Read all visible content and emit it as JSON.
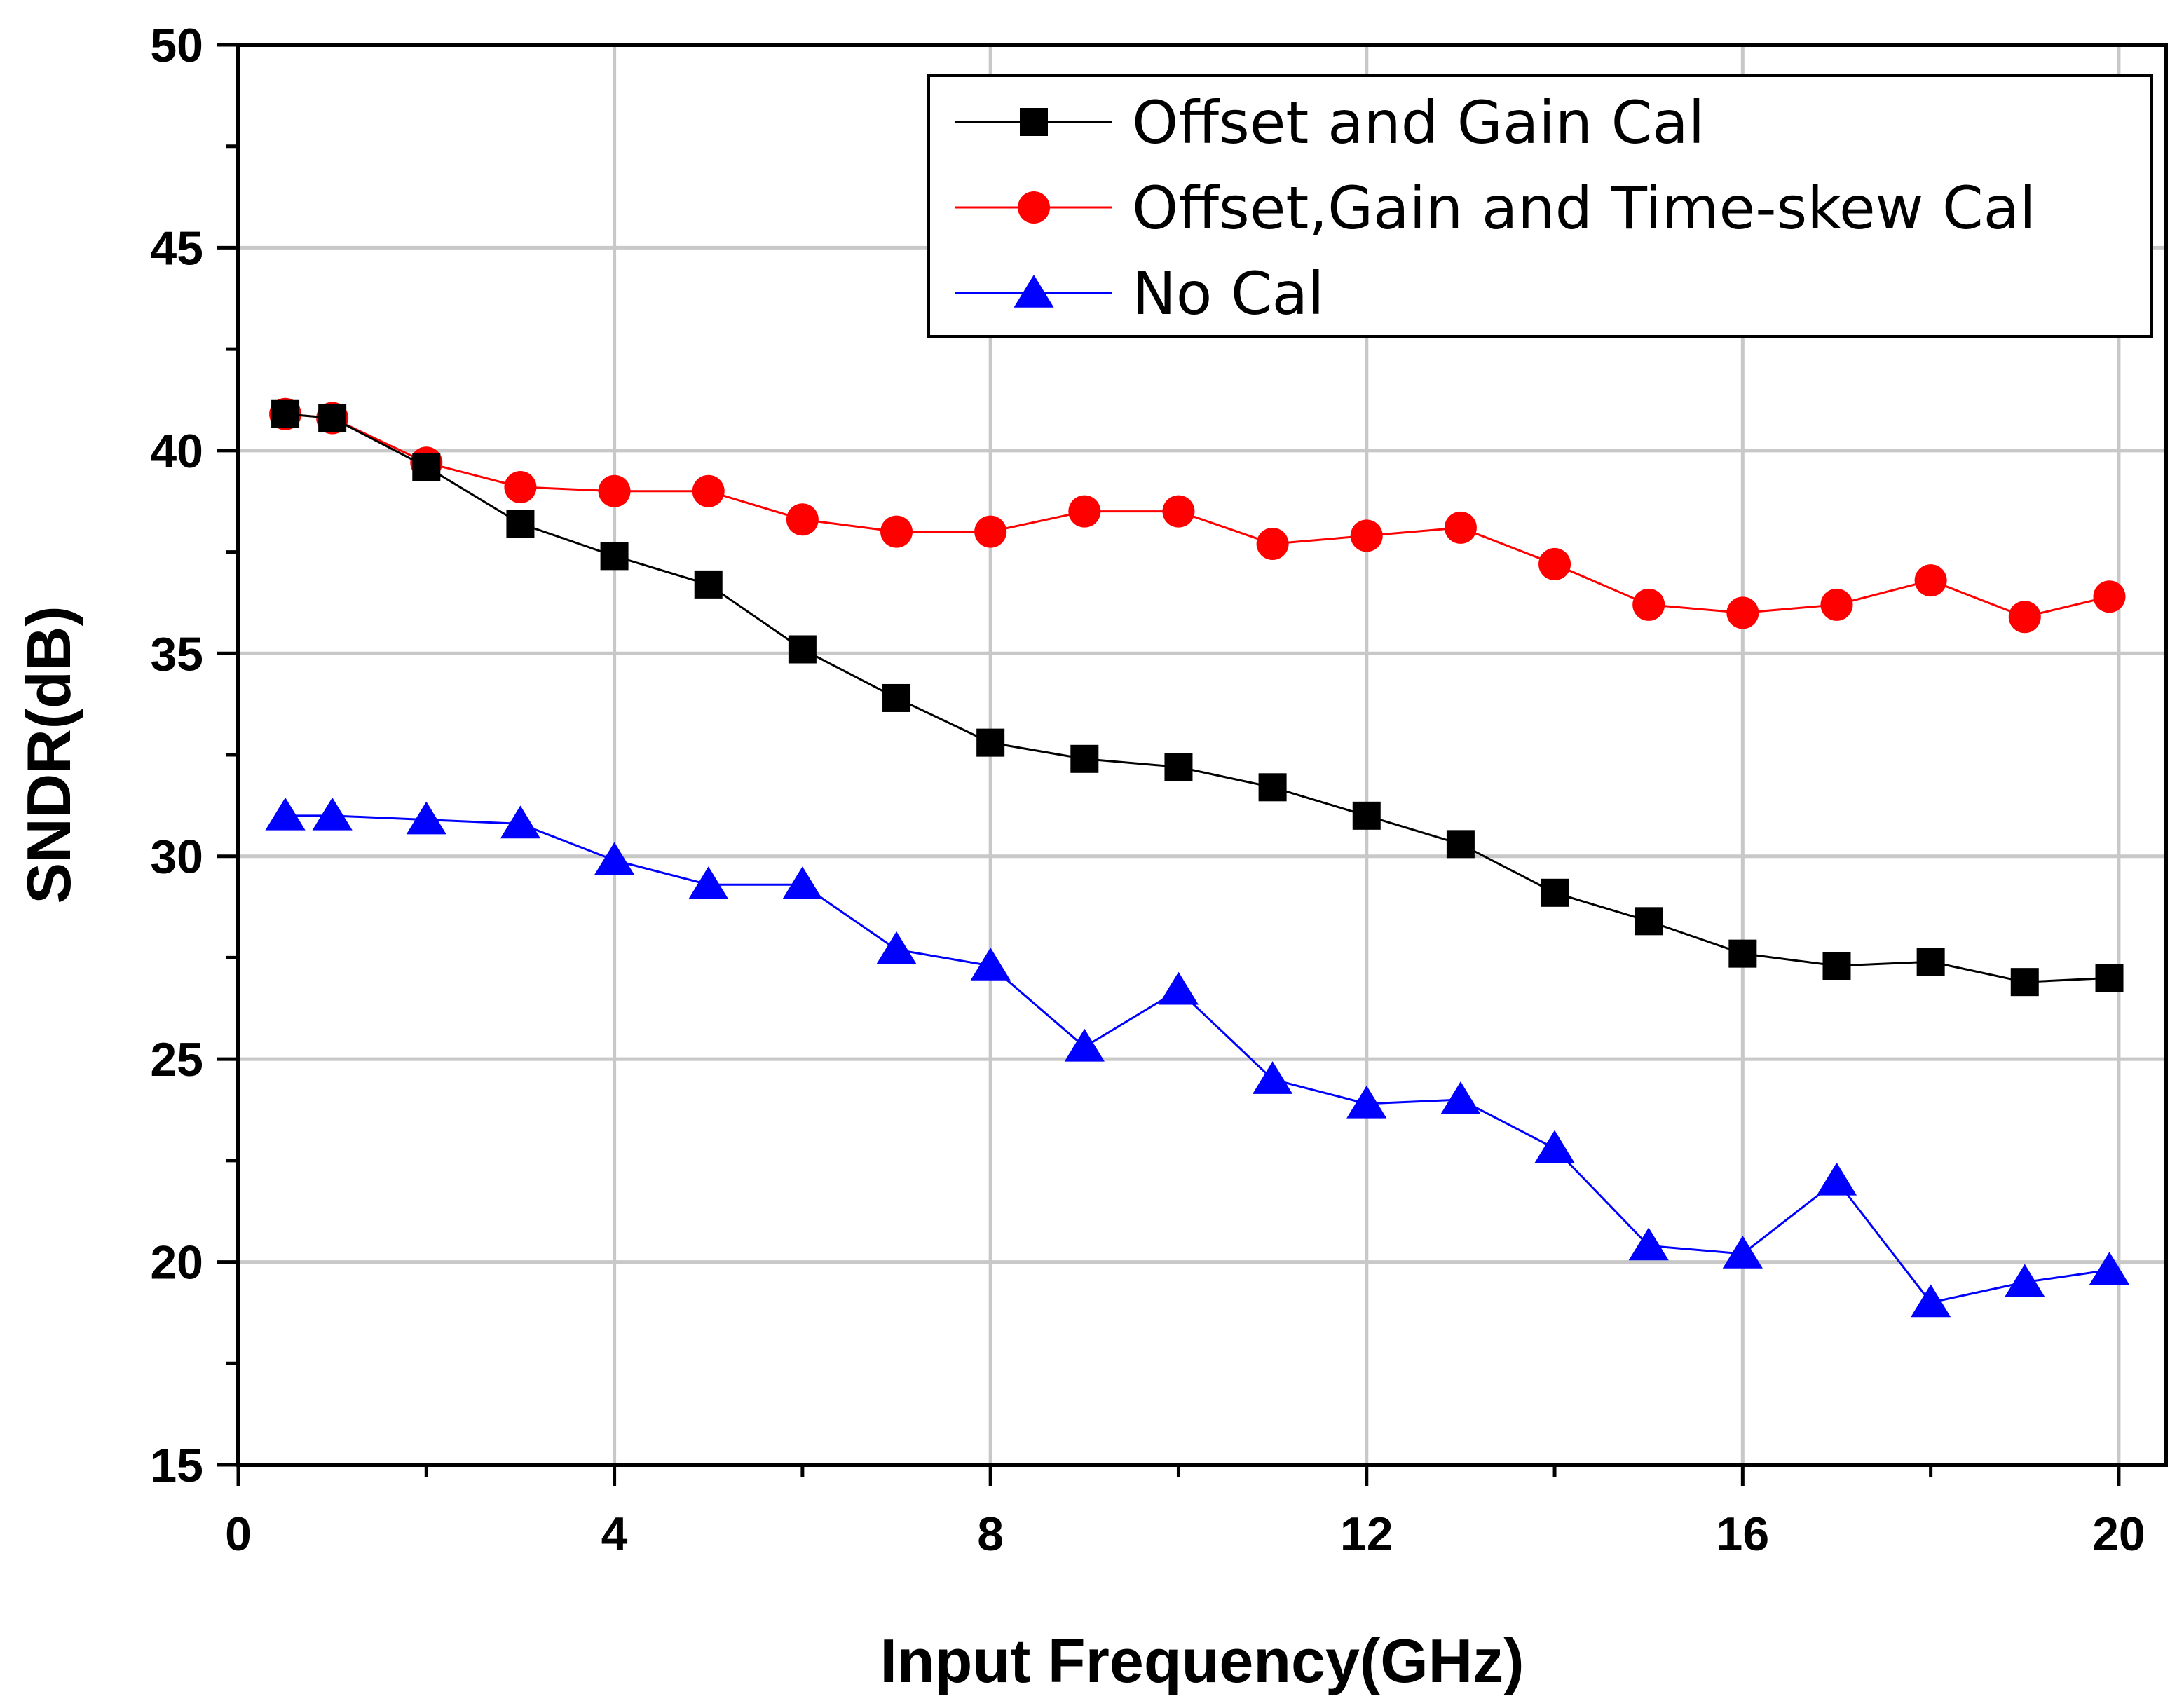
{
  "chart_data": {
    "type": "line",
    "title": "",
    "xlabel": "Input Frequency(GHz)",
    "ylabel": "SNDR(dB)",
    "xlim": [
      0,
      20.5
    ],
    "ylim": [
      15,
      50
    ],
    "xticks": [
      0,
      4,
      8,
      12,
      16,
      20
    ],
    "xtick_labels": [
      "0",
      "4",
      "8",
      "12",
      "16",
      "20"
    ],
    "yticks": [
      15,
      20,
      25,
      30,
      35,
      40,
      45,
      50
    ],
    "ytick_labels": [
      "15",
      "20",
      "25",
      "30",
      "35",
      "40",
      "45",
      "50"
    ],
    "grid": true,
    "legend_position": "top-right",
    "series": [
      {
        "name": "Offset and Gain Cal",
        "color": "#000000",
        "marker": "square",
        "x": [
          0.5,
          1,
          2,
          3,
          4,
          5,
          6,
          7,
          8,
          9,
          10,
          11,
          12,
          13,
          14,
          15,
          16,
          17,
          18,
          19,
          19.9
        ],
        "values": [
          40.9,
          40.8,
          39.6,
          38.2,
          37.4,
          36.7,
          35.1,
          33.9,
          32.8,
          32.4,
          32.2,
          31.7,
          31.0,
          30.3,
          29.1,
          28.4,
          27.6,
          27.3,
          27.4,
          26.9,
          27.0
        ]
      },
      {
        "name": "Offset,Gain and Time-skew Cal",
        "color": "#ff0000",
        "marker": "circle",
        "x": [
          0.5,
          1,
          2,
          3,
          4,
          5,
          6,
          7,
          8,
          9,
          10,
          11,
          12,
          13,
          14,
          15,
          16,
          17,
          18,
          19,
          19.9
        ],
        "values": [
          40.9,
          40.8,
          39.7,
          39.1,
          39.0,
          39.0,
          38.3,
          38.0,
          38.0,
          38.5,
          38.5,
          37.7,
          37.9,
          38.1,
          37.2,
          36.2,
          36.0,
          36.2,
          36.8,
          35.9,
          36.4
        ]
      },
      {
        "name": "No Cal",
        "color": "#0000ff",
        "marker": "triangle",
        "x": [
          0.5,
          1,
          2,
          3,
          4,
          5,
          6,
          7,
          8,
          9,
          10,
          11,
          12,
          13,
          14,
          15,
          16,
          17,
          18,
          19,
          19.9
        ],
        "values": [
          31.0,
          31.0,
          30.9,
          30.8,
          29.9,
          29.3,
          29.3,
          27.7,
          27.3,
          25.3,
          26.7,
          24.5,
          23.9,
          24.0,
          22.8,
          20.4,
          20.2,
          22.0,
          19.0,
          19.5,
          19.8
        ]
      }
    ]
  }
}
